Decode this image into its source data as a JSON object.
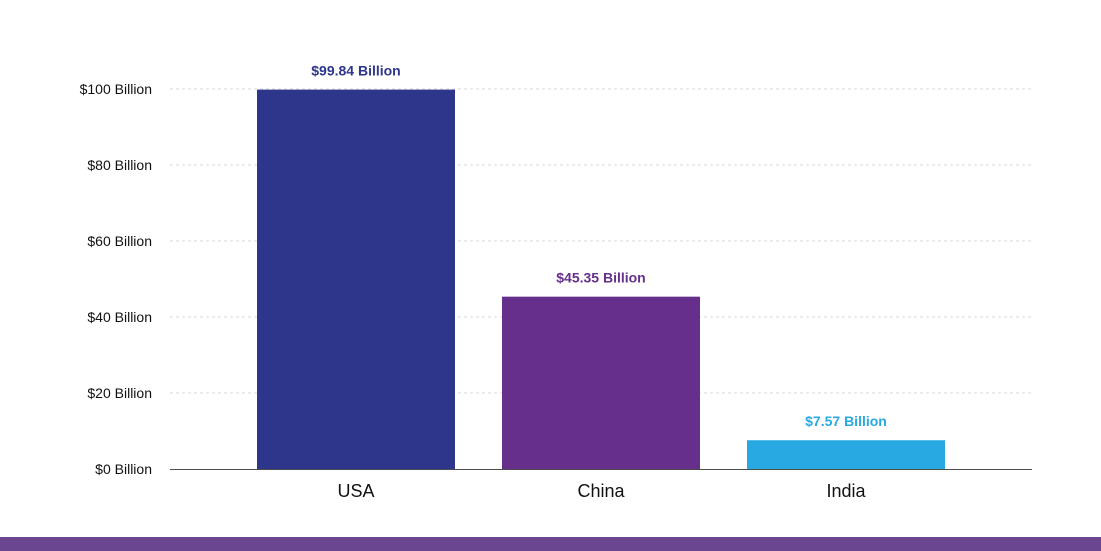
{
  "chart_data": {
    "type": "bar",
    "categories": [
      "USA",
      "China",
      "India"
    ],
    "values": [
      99.84,
      45.35,
      7.57
    ],
    "data_labels": [
      "$99.84 Billion",
      "$45.35 Billion",
      "$7.57 Billion"
    ],
    "bar_colors": [
      "#2e368c",
      "#652f8b",
      "#29a9e1"
    ],
    "y_ticks": [
      0,
      20,
      40,
      60,
      80,
      100
    ],
    "y_tick_labels": [
      "$0 Billion",
      "$20 Billion",
      "$40 Billion",
      "$60 Billion",
      "$80 Billion",
      "$100 Billion"
    ],
    "ylim": [
      0,
      100
    ],
    "grid": true,
    "title": "",
    "xlabel": "",
    "ylabel": ""
  },
  "footer": {
    "color": "#6a4690"
  }
}
